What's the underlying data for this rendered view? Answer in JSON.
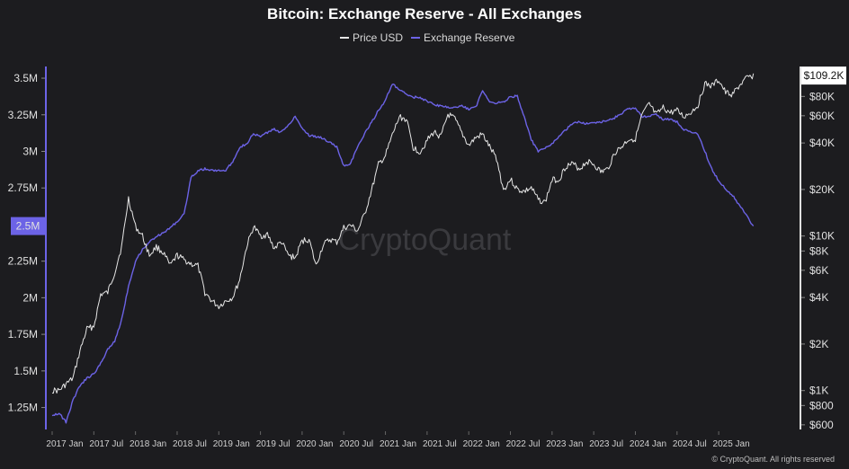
{
  "chart_data": {
    "type": "line",
    "title": "Bitcoin: Exchange Reserve - All Exchanges",
    "legend": {
      "placement": "top-center",
      "entries": [
        "Price USD",
        "Exchange Reserve"
      ]
    },
    "colors": {
      "price": "#e6e6e6",
      "reserve": "#6c63e6",
      "background": "#1c1c1f",
      "current_price_badge_bg": "#ffffff",
      "current_reserve_badge_bg": "#6c63e6"
    },
    "grid": false,
    "x_ticks": [
      "2017 Jan",
      "2017 Jul",
      "2018 Jan",
      "2018 Jul",
      "2019 Jan",
      "2019 Jul",
      "2020 Jan",
      "2020 Jul",
      "2021 Jan",
      "2021 Jul",
      "2022 Jan",
      "2022 Jul",
      "2023 Jan",
      "2023 Jul",
      "2024 Jan",
      "2024 Jul",
      "2025 Jan"
    ],
    "left_axis": {
      "label": "",
      "range": [
        1100000,
        3580000
      ],
      "ticks": [
        {
          "v": 3500000,
          "t": "3.5M"
        },
        {
          "v": 3250000,
          "t": "3.25M"
        },
        {
          "v": 3000000,
          "t": "3M"
        },
        {
          "v": 2750000,
          "t": "2.75M"
        },
        {
          "v": 2500000,
          "t": "2.5M"
        },
        {
          "v": 2250000,
          "t": "2.25M"
        },
        {
          "v": 2000000,
          "t": "2M"
        },
        {
          "v": 1750000,
          "t": "1.75M"
        },
        {
          "v": 1500000,
          "t": "1.5M"
        },
        {
          "v": 1250000,
          "t": "1.25M"
        }
      ],
      "current_label": "2.5M"
    },
    "right_axis": {
      "label": "",
      "scale": "log",
      "range": [
        560,
        125000
      ],
      "ticks": [
        {
          "v": 80000,
          "t": "$80K"
        },
        {
          "v": 60000,
          "t": "$60K"
        },
        {
          "v": 40000,
          "t": "$40K"
        },
        {
          "v": 20000,
          "t": "$20K"
        },
        {
          "v": 10000,
          "t": "$10K"
        },
        {
          "v": 8000,
          "t": "$8K"
        },
        {
          "v": 6000,
          "t": "$6K"
        },
        {
          "v": 4000,
          "t": "$4K"
        },
        {
          "v": 2000,
          "t": "$2K"
        },
        {
          "v": 1000,
          "t": "$1K"
        },
        {
          "v": 800,
          "t": "$800"
        },
        {
          "v": 600,
          "t": "$600"
        }
      ],
      "current_label": "$109.2K"
    },
    "series": [
      {
        "name": "Price USD",
        "axis": "right",
        "points": [
          [
            "2017-01",
            1000
          ],
          [
            "2017-02",
            1000
          ],
          [
            "2017-03",
            1100
          ],
          [
            "2017-04",
            1200
          ],
          [
            "2017-05",
            1800
          ],
          [
            "2017-06",
            2500
          ],
          [
            "2017-07",
            2600
          ],
          [
            "2017-08",
            4200
          ],
          [
            "2017-09",
            4300
          ],
          [
            "2017-10",
            5800
          ],
          [
            "2017-11",
            8500
          ],
          [
            "2017-12",
            17500
          ],
          [
            "2018-01",
            11500
          ],
          [
            "2018-02",
            10000
          ],
          [
            "2018-03",
            7500
          ],
          [
            "2018-04",
            8500
          ],
          [
            "2018-05",
            7800
          ],
          [
            "2018-06",
            6400
          ],
          [
            "2018-07",
            7500
          ],
          [
            "2018-08",
            7000
          ],
          [
            "2018-09",
            6600
          ],
          [
            "2018-10",
            6400
          ],
          [
            "2018-11",
            4300
          ],
          [
            "2018-12",
            3800
          ],
          [
            "2019-01",
            3500
          ],
          [
            "2019-02",
            3800
          ],
          [
            "2019-03",
            4000
          ],
          [
            "2019-04",
            5200
          ],
          [
            "2019-05",
            8500
          ],
          [
            "2019-06",
            11500
          ],
          [
            "2019-07",
            10000
          ],
          [
            "2019-08",
            10200
          ],
          [
            "2019-09",
            8300
          ],
          [
            "2019-10",
            9200
          ],
          [
            "2019-11",
            7500
          ],
          [
            "2019-12",
            7200
          ],
          [
            "2020-01",
            9300
          ],
          [
            "2020-02",
            9500
          ],
          [
            "2020-03",
            6400
          ],
          [
            "2020-04",
            8700
          ],
          [
            "2020-05",
            9500
          ],
          [
            "2020-06",
            9100
          ],
          [
            "2020-07",
            11300
          ],
          [
            "2020-08",
            11700
          ],
          [
            "2020-09",
            10800
          ],
          [
            "2020-10",
            13800
          ],
          [
            "2020-11",
            19700
          ],
          [
            "2020-12",
            29000
          ],
          [
            "2021-01",
            33000
          ],
          [
            "2021-02",
            45000
          ],
          [
            "2021-03",
            58800
          ],
          [
            "2021-04",
            57000
          ],
          [
            "2021-05",
            37300
          ],
          [
            "2021-06",
            35000
          ],
          [
            "2021-07",
            41500
          ],
          [
            "2021-08",
            47100
          ],
          [
            "2021-09",
            43800
          ],
          [
            "2021-10",
            61300
          ],
          [
            "2021-11",
            57000
          ],
          [
            "2021-12",
            46300
          ],
          [
            "2022-01",
            38500
          ],
          [
            "2022-02",
            43200
          ],
          [
            "2022-03",
            45500
          ],
          [
            "2022-04",
            37700
          ],
          [
            "2022-05",
            31800
          ],
          [
            "2022-06",
            19800
          ],
          [
            "2022-07",
            23300
          ],
          [
            "2022-08",
            20000
          ],
          [
            "2022-09",
            19400
          ],
          [
            "2022-10",
            20500
          ],
          [
            "2022-11",
            17200
          ],
          [
            "2022-12",
            16500
          ],
          [
            "2023-01",
            23100
          ],
          [
            "2023-02",
            23100
          ],
          [
            "2023-03",
            28500
          ],
          [
            "2023-04",
            29200
          ],
          [
            "2023-05",
            27200
          ],
          [
            "2023-06",
            30500
          ],
          [
            "2023-07",
            29200
          ],
          [
            "2023-08",
            26000
          ],
          [
            "2023-09",
            27000
          ],
          [
            "2023-10",
            34500
          ],
          [
            "2023-11",
            37700
          ],
          [
            "2023-12",
            42300
          ],
          [
            "2024-01",
            42600
          ],
          [
            "2024-02",
            61200
          ],
          [
            "2024-03",
            71300
          ],
          [
            "2024-04",
            60600
          ],
          [
            "2024-05",
            67500
          ],
          [
            "2024-06",
            62700
          ],
          [
            "2024-07",
            64600
          ],
          [
            "2024-08",
            59000
          ],
          [
            "2024-09",
            63300
          ],
          [
            "2024-10",
            70200
          ],
          [
            "2024-11",
            96400
          ],
          [
            "2024-12",
            93400
          ],
          [
            "2025-01",
            102400
          ],
          [
            "2025-02",
            84400
          ],
          [
            "2025-03",
            82500
          ],
          [
            "2025-04",
            94200
          ],
          [
            "2025-05",
            104600
          ],
          [
            "2025-06",
            109200
          ]
        ]
      },
      {
        "name": "Exchange Reserve",
        "axis": "left",
        "points": [
          [
            "2017-01",
            1200000
          ],
          [
            "2017-02",
            1210000
          ],
          [
            "2017-03",
            1150000
          ],
          [
            "2017-04",
            1300000
          ],
          [
            "2017-05",
            1400000
          ],
          [
            "2017-06",
            1450000
          ],
          [
            "2017-07",
            1480000
          ],
          [
            "2017-08",
            1550000
          ],
          [
            "2017-09",
            1650000
          ],
          [
            "2017-10",
            1700000
          ],
          [
            "2017-11",
            1850000
          ],
          [
            "2017-12",
            2080000
          ],
          [
            "2018-01",
            2250000
          ],
          [
            "2018-02",
            2330000
          ],
          [
            "2018-03",
            2380000
          ],
          [
            "2018-04",
            2420000
          ],
          [
            "2018-05",
            2440000
          ],
          [
            "2018-06",
            2480000
          ],
          [
            "2018-07",
            2520000
          ],
          [
            "2018-08",
            2570000
          ],
          [
            "2018-09",
            2820000
          ],
          [
            "2018-10",
            2870000
          ],
          [
            "2018-11",
            2880000
          ],
          [
            "2018-12",
            2870000
          ],
          [
            "2019-01",
            2870000
          ],
          [
            "2019-02",
            2870000
          ],
          [
            "2019-03",
            2930000
          ],
          [
            "2019-04",
            3030000
          ],
          [
            "2019-05",
            3050000
          ],
          [
            "2019-06",
            3120000
          ],
          [
            "2019-07",
            3100000
          ],
          [
            "2019-08",
            3130000
          ],
          [
            "2019-09",
            3150000
          ],
          [
            "2019-10",
            3130000
          ],
          [
            "2019-11",
            3180000
          ],
          [
            "2019-12",
            3240000
          ],
          [
            "2020-01",
            3160000
          ],
          [
            "2020-02",
            3110000
          ],
          [
            "2020-03",
            3100000
          ],
          [
            "2020-04",
            3090000
          ],
          [
            "2020-05",
            3060000
          ],
          [
            "2020-06",
            3030000
          ],
          [
            "2020-07",
            2900000
          ],
          [
            "2020-08",
            2920000
          ],
          [
            "2020-09",
            3030000
          ],
          [
            "2020-10",
            3120000
          ],
          [
            "2020-11",
            3200000
          ],
          [
            "2020-12",
            3280000
          ],
          [
            "2021-01",
            3350000
          ],
          [
            "2021-02",
            3460000
          ],
          [
            "2021-03",
            3420000
          ],
          [
            "2021-04",
            3390000
          ],
          [
            "2021-05",
            3370000
          ],
          [
            "2021-06",
            3370000
          ],
          [
            "2021-07",
            3340000
          ],
          [
            "2021-08",
            3320000
          ],
          [
            "2021-09",
            3310000
          ],
          [
            "2021-10",
            3300000
          ],
          [
            "2021-11",
            3300000
          ],
          [
            "2021-12",
            3310000
          ],
          [
            "2022-01",
            3290000
          ],
          [
            "2022-02",
            3300000
          ],
          [
            "2022-03",
            3420000
          ],
          [
            "2022-04",
            3340000
          ],
          [
            "2022-05",
            3330000
          ],
          [
            "2022-06",
            3340000
          ],
          [
            "2022-07",
            3370000
          ],
          [
            "2022-08",
            3380000
          ],
          [
            "2022-09",
            3230000
          ],
          [
            "2022-10",
            3080000
          ],
          [
            "2022-11",
            3000000
          ],
          [
            "2022-12",
            3020000
          ],
          [
            "2023-01",
            3050000
          ],
          [
            "2023-02",
            3100000
          ],
          [
            "2023-03",
            3150000
          ],
          [
            "2023-04",
            3190000
          ],
          [
            "2023-05",
            3200000
          ],
          [
            "2023-06",
            3190000
          ],
          [
            "2023-07",
            3200000
          ],
          [
            "2023-08",
            3200000
          ],
          [
            "2023-09",
            3210000
          ],
          [
            "2023-10",
            3230000
          ],
          [
            "2023-11",
            3260000
          ],
          [
            "2023-12",
            3290000
          ],
          [
            "2024-01",
            3290000
          ],
          [
            "2024-02",
            3240000
          ],
          [
            "2024-03",
            3240000
          ],
          [
            "2024-04",
            3250000
          ],
          [
            "2024-05",
            3220000
          ],
          [
            "2024-06",
            3220000
          ],
          [
            "2024-07",
            3200000
          ],
          [
            "2024-08",
            3150000
          ],
          [
            "2024-09",
            3130000
          ],
          [
            "2024-10",
            3120000
          ],
          [
            "2024-11",
            3000000
          ],
          [
            "2024-12",
            2880000
          ],
          [
            "2025-01",
            2800000
          ],
          [
            "2025-02",
            2740000
          ],
          [
            "2025-03",
            2700000
          ],
          [
            "2025-04",
            2630000
          ],
          [
            "2025-05",
            2560000
          ],
          [
            "2025-06",
            2490000
          ]
        ]
      }
    ]
  },
  "watermark": "CryptoQuant",
  "footer": "© CryptoQuant. All rights reserved"
}
